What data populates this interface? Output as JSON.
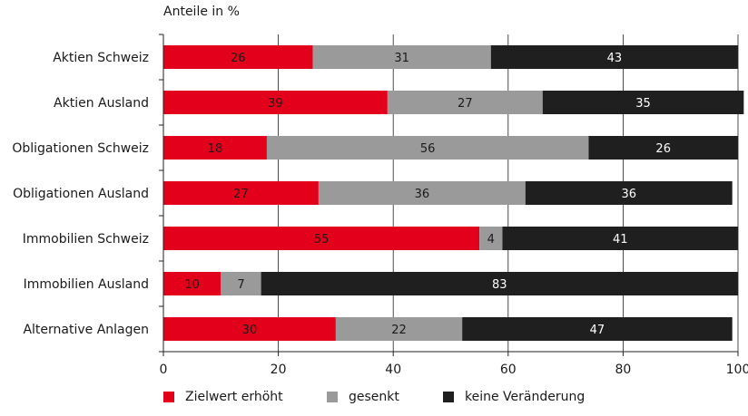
{
  "chart_data": {
    "type": "bar",
    "orientation": "horizontal",
    "stacked": true,
    "unit_label": "Anteile in %",
    "categories": [
      "Aktien Schweiz",
      "Aktien Ausland",
      "Obligationen Schweiz",
      "Obligationen Ausland",
      "Immobilien Schweiz",
      "Immobilien Ausland",
      "Alternative Anlagen"
    ],
    "series": [
      {
        "name": "Zielwert erhöht",
        "color": "#e3001b",
        "values": [
          26,
          39,
          18,
          27,
          55,
          10,
          30
        ]
      },
      {
        "name": "gesenkt",
        "color": "#9a9a9a",
        "values": [
          31,
          27,
          56,
          36,
          4,
          7,
          22
        ]
      },
      {
        "name": "keine Veränderung",
        "color": "#1f1f1f",
        "values": [
          43,
          35,
          26,
          36,
          41,
          83,
          47
        ]
      }
    ],
    "xlim": [
      0,
      100
    ],
    "xticks": [
      0,
      20,
      40,
      60,
      80,
      100
    ],
    "grid": true,
    "legend_position": "bottom"
  }
}
